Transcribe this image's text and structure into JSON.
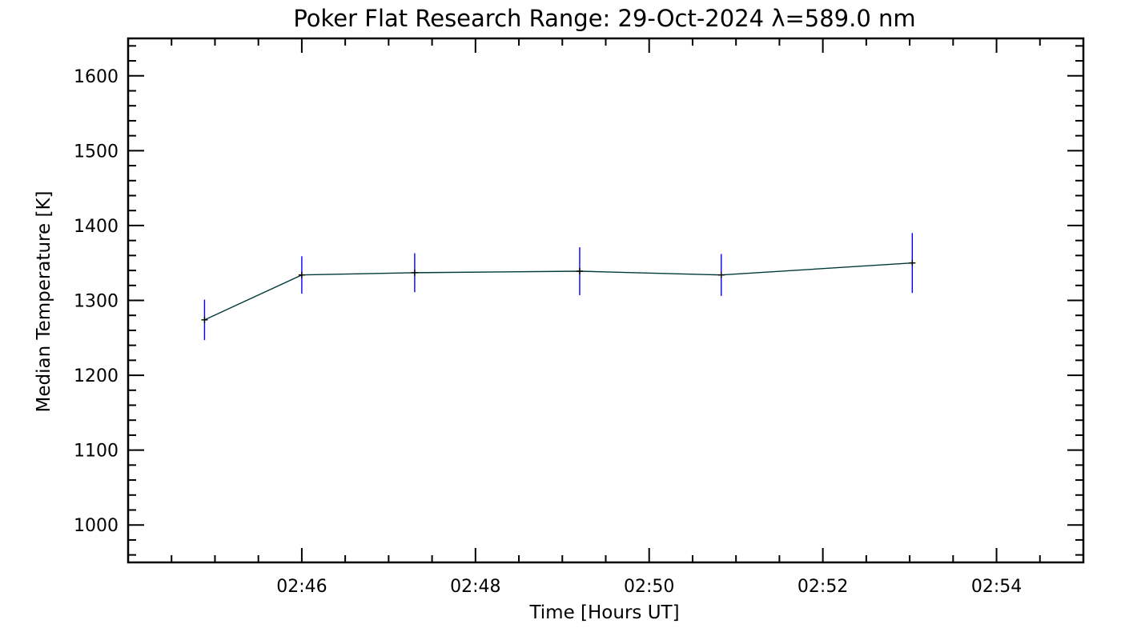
{
  "chart_data": {
    "type": "line",
    "title": "Poker Flat Research Range: 29-Oct-2024 λ=589.0 nm",
    "xlabel": "Time [Hours UT]",
    "ylabel": "Median Temperature [K]",
    "xlim_minutes": [
      44.0,
      55.0
    ],
    "ylim": [
      950,
      1650
    ],
    "x_ticks": [
      {
        "minute": 46,
        "label": "02:46"
      },
      {
        "minute": 48,
        "label": "02:48"
      },
      {
        "minute": 50,
        "label": "02:50"
      },
      {
        "minute": 52,
        "label": "02:52"
      },
      {
        "minute": 54,
        "label": "02:54"
      }
    ],
    "y_ticks": [
      {
        "value": 1000,
        "label": "1000"
      },
      {
        "value": 1100,
        "label": "1100"
      },
      {
        "value": 1200,
        "label": "1200"
      },
      {
        "value": 1300,
        "label": "1300"
      },
      {
        "value": 1400,
        "label": "1400"
      },
      {
        "value": 1500,
        "label": "1500"
      },
      {
        "value": 1600,
        "label": "1600"
      }
    ],
    "series": [
      {
        "name": "Median Temperature",
        "x_minutes": [
          44.88,
          46.0,
          47.3,
          49.2,
          50.83,
          53.03
        ],
        "values": [
          1274,
          1334,
          1337,
          1339,
          1334,
          1350
        ],
        "errors": [
          27,
          25,
          26,
          32,
          28,
          40
        ],
        "line_color": "#003a3a",
        "error_color": "#0000ff",
        "marker_color": "#000000"
      }
    ],
    "grid": false,
    "legend": null
  }
}
